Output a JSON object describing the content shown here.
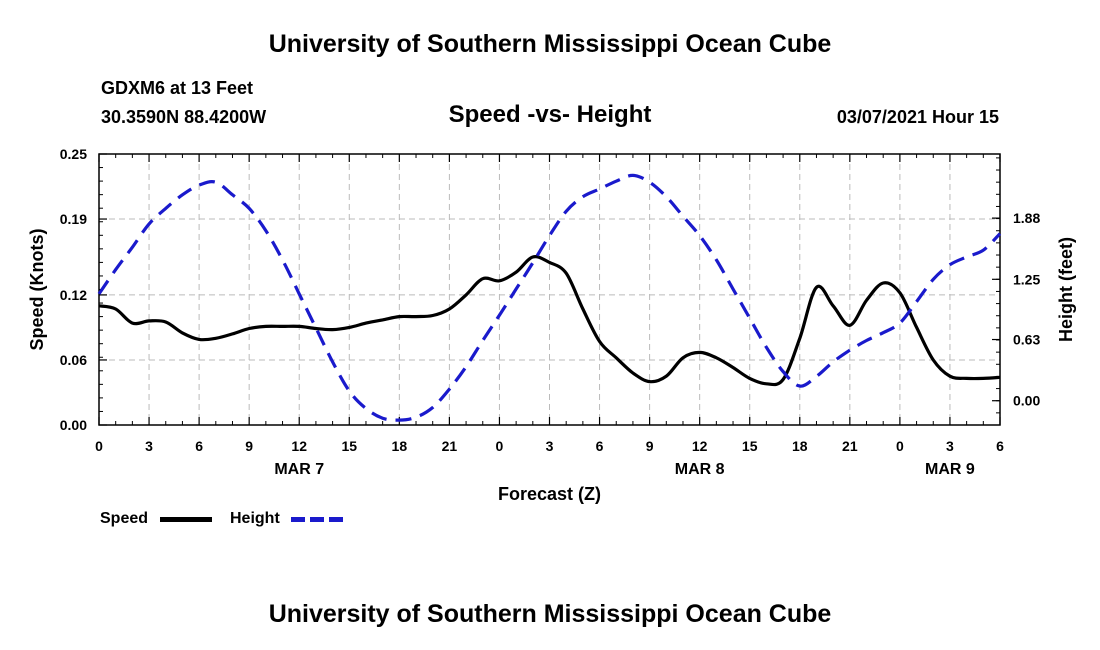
{
  "header": {
    "title": "University of Southern Mississippi Ocean Cube",
    "station": "GDXM6 at 13 Feet",
    "coords": "30.3590N 88.4200W",
    "chart_title": "Speed -vs- Height",
    "timestamp": "03/07/2021 Hour 15"
  },
  "footer": {
    "title": "University of Southern Mississippi Ocean Cube"
  },
  "legend": {
    "speed_label": "Speed",
    "height_label": "Height",
    "speed_color": "#000000",
    "height_color": "#1a1acc"
  },
  "chart_data": {
    "type": "line",
    "title": "Speed -vs- Height",
    "xlabel": "Forecast (Z)",
    "ylabel": "Speed (Knots)",
    "y2label": "Height (feet)",
    "xlim": [
      0,
      54
    ],
    "ylim": [
      0,
      0.25
    ],
    "y2lim": [
      -0.25,
      2.54
    ],
    "x_ticks": [
      0,
      3,
      6,
      9,
      12,
      15,
      18,
      21,
      24,
      27,
      30,
      33,
      36,
      39,
      42,
      45,
      48,
      51,
      54
    ],
    "x_tick_labels": [
      "0",
      "3",
      "6",
      "9",
      "12",
      "15",
      "18",
      "21",
      "0",
      "3",
      "6",
      "9",
      "12",
      "15",
      "18",
      "21",
      "0",
      "3",
      "6"
    ],
    "y_ticks": [
      0.0,
      0.06,
      0.12,
      0.19,
      0.25
    ],
    "y_tick_labels": [
      "0.00",
      "0.06",
      "0.12",
      "0.19",
      "0.25"
    ],
    "y2_ticks": [
      0.0,
      0.63,
      1.25,
      1.88
    ],
    "y2_tick_labels": [
      "0.00",
      "0.63",
      "1.25",
      "1.88"
    ],
    "date_labels": [
      {
        "label": "MAR 7",
        "x": 12
      },
      {
        "label": "MAR 8",
        "x": 36
      },
      {
        "label": "MAR 9",
        "x": 51
      }
    ],
    "grid": true,
    "series": [
      {
        "name": "Speed",
        "axis": "left",
        "color": "#000000",
        "dash": "solid",
        "x": [
          0,
          1,
          2,
          3,
          4,
          5,
          6,
          7,
          8,
          9,
          10,
          11,
          12,
          13,
          14,
          15,
          16,
          17,
          18,
          19,
          20,
          21,
          22,
          23,
          24,
          25,
          26,
          27,
          28,
          29,
          30,
          31,
          32,
          33,
          34,
          35,
          36,
          37,
          38,
          39,
          40,
          41,
          42,
          43,
          44,
          45,
          46,
          47,
          48,
          49,
          50,
          51,
          52,
          53,
          54
        ],
        "values": [
          0.11,
          0.107,
          0.094,
          0.096,
          0.095,
          0.085,
          0.079,
          0.08,
          0.084,
          0.089,
          0.091,
          0.091,
          0.091,
          0.089,
          0.088,
          0.09,
          0.094,
          0.097,
          0.1,
          0.1,
          0.101,
          0.107,
          0.12,
          0.135,
          0.133,
          0.141,
          0.155,
          0.15,
          0.14,
          0.107,
          0.077,
          0.062,
          0.048,
          0.04,
          0.045,
          0.062,
          0.067,
          0.062,
          0.053,
          0.043,
          0.038,
          0.042,
          0.08,
          0.127,
          0.11,
          0.092,
          0.115,
          0.131,
          0.122,
          0.09,
          0.06,
          0.045,
          0.043,
          0.043,
          0.044
        ]
      },
      {
        "name": "Height",
        "axis": "right",
        "color": "#1a1acc",
        "dash": "dashed",
        "x": [
          0,
          1,
          2,
          3,
          4,
          5,
          6,
          7,
          8,
          9,
          10,
          11,
          12,
          13,
          14,
          15,
          16,
          17,
          18,
          19,
          20,
          21,
          22,
          23,
          24,
          25,
          26,
          27,
          28,
          29,
          30,
          31,
          32,
          33,
          34,
          35,
          36,
          37,
          38,
          39,
          40,
          41,
          42,
          43,
          44,
          45,
          46,
          47,
          48,
          49,
          50,
          51,
          52,
          53,
          54
        ],
        "values": [
          1.1,
          1.35,
          1.58,
          1.82,
          1.98,
          2.12,
          2.22,
          2.25,
          2.12,
          1.98,
          1.75,
          1.45,
          1.1,
          0.75,
          0.4,
          0.1,
          -0.08,
          -0.18,
          -0.2,
          -0.17,
          -0.07,
          0.12,
          0.35,
          0.62,
          0.88,
          1.15,
          1.42,
          1.7,
          1.95,
          2.1,
          2.18,
          2.26,
          2.32,
          2.25,
          2.1,
          1.9,
          1.7,
          1.45,
          1.15,
          0.85,
          0.55,
          0.3,
          0.15,
          0.25,
          0.4,
          0.52,
          0.62,
          0.7,
          0.8,
          1.02,
          1.25,
          1.4,
          1.48,
          1.55,
          1.72
        ]
      }
    ]
  }
}
